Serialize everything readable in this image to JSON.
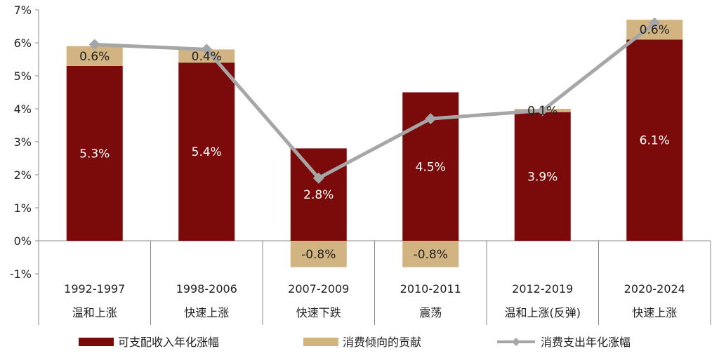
{
  "chart_data": {
    "type": "bar",
    "categories": [
      "1992-1997",
      "1998-2006",
      "2007-2009",
      "2010-2011",
      "2012-2019",
      "2020-2024"
    ],
    "subcategories": [
      "温和上涨",
      "快速上涨",
      "快速下跌",
      "震荡",
      "温和上涨(反弹)",
      "快速上涨"
    ],
    "series": [
      {
        "name": "可支配收入年化涨幅",
        "type": "bar",
        "stack": "main",
        "color": "#7b0a0a",
        "values": [
          5.3,
          5.4,
          2.8,
          4.5,
          3.9,
          6.1
        ],
        "labels": [
          "5.3%",
          "5.4%",
          "2.8%",
          "4.5%",
          "3.9%",
          "6.1%"
        ]
      },
      {
        "name": "消费倾向的贡献",
        "type": "bar",
        "stack": "main",
        "color": "#d2b483",
        "values": [
          0.6,
          0.4,
          -0.8,
          -0.8,
          0.1,
          0.6
        ],
        "labels": [
          "0.6%",
          "0.4%",
          "-0.8%",
          "-0.8%",
          "0.1%",
          "0.6%"
        ]
      },
      {
        "name": "消费支出年化涨幅",
        "type": "line",
        "color": "#a6a6a6",
        "values": [
          5.95,
          5.8,
          1.9,
          3.7,
          3.95,
          6.6
        ]
      }
    ],
    "ylim": [
      -1,
      7
    ],
    "yticks": [
      "7%",
      "6%",
      "5%",
      "4%",
      "3%",
      "2%",
      "1%",
      "0%",
      "-1%"
    ],
    "grid": false,
    "legend_position": "bottom"
  }
}
